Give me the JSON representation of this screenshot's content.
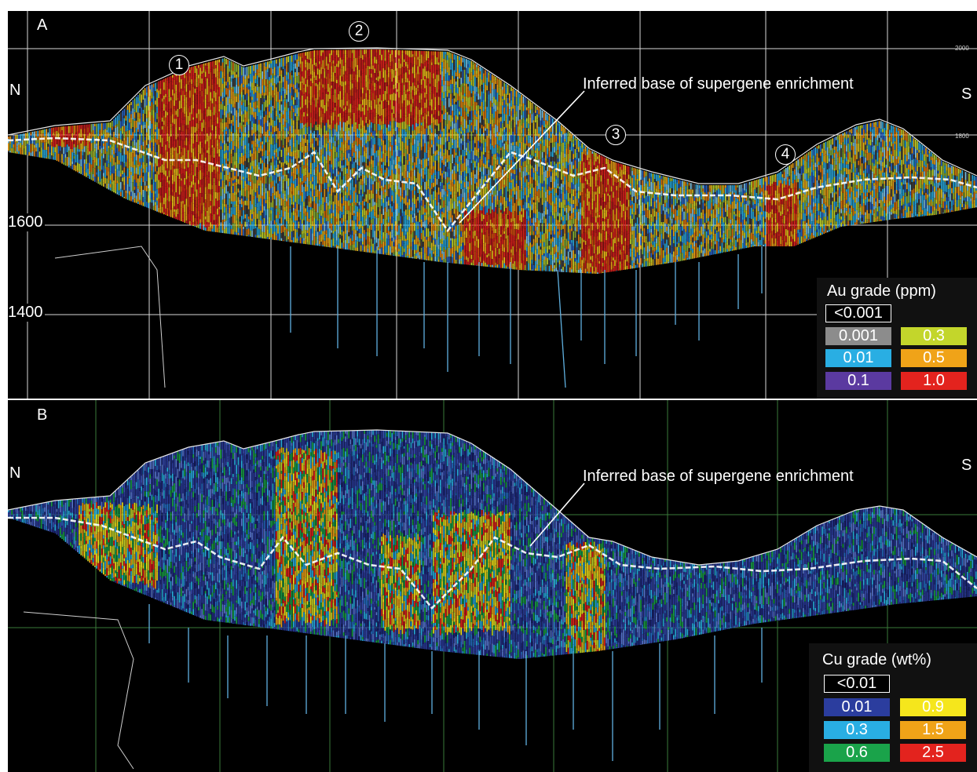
{
  "panelA": {
    "letter": "A",
    "north": "N",
    "south": "S",
    "annotation": "Inferred base of supergene enrichment",
    "zones": [
      "1",
      "2",
      "3",
      "4"
    ],
    "elevations": [
      "1600",
      "1400"
    ],
    "small_ticks": [
      "2000",
      "1800"
    ],
    "legend": {
      "title": "Au grade (ppm)",
      "items": [
        {
          "label": "<0.001",
          "color": "#000000"
        },
        {
          "label": "0.001",
          "color": "#8c8c8c"
        },
        {
          "label": "0.01",
          "color": "#29aee3"
        },
        {
          "label": "0.1",
          "color": "#5b3aa0"
        },
        {
          "label": "0.3",
          "color": "#c3d62b"
        },
        {
          "label": "0.5",
          "color": "#f0a318"
        },
        {
          "label": "1.0",
          "color": "#e3231e"
        }
      ]
    }
  },
  "panelB": {
    "letter": "B",
    "north": "N",
    "south": "S",
    "annotation": "Inferred base of supergene enrichment",
    "legend": {
      "title": "Cu grade (wt%)",
      "items": [
        {
          "label": "<0.01",
          "color": "#000000"
        },
        {
          "label": "0.01",
          "color": "#2b3d9e"
        },
        {
          "label": "0.3",
          "color": "#29aee3"
        },
        {
          "label": "0.6",
          "color": "#1aa34a"
        },
        {
          "label": "0.9",
          "color": "#f5e61c"
        },
        {
          "label": "1.5",
          "color": "#f0a318"
        },
        {
          "label": "2.5",
          "color": "#e3231e"
        }
      ]
    }
  }
}
